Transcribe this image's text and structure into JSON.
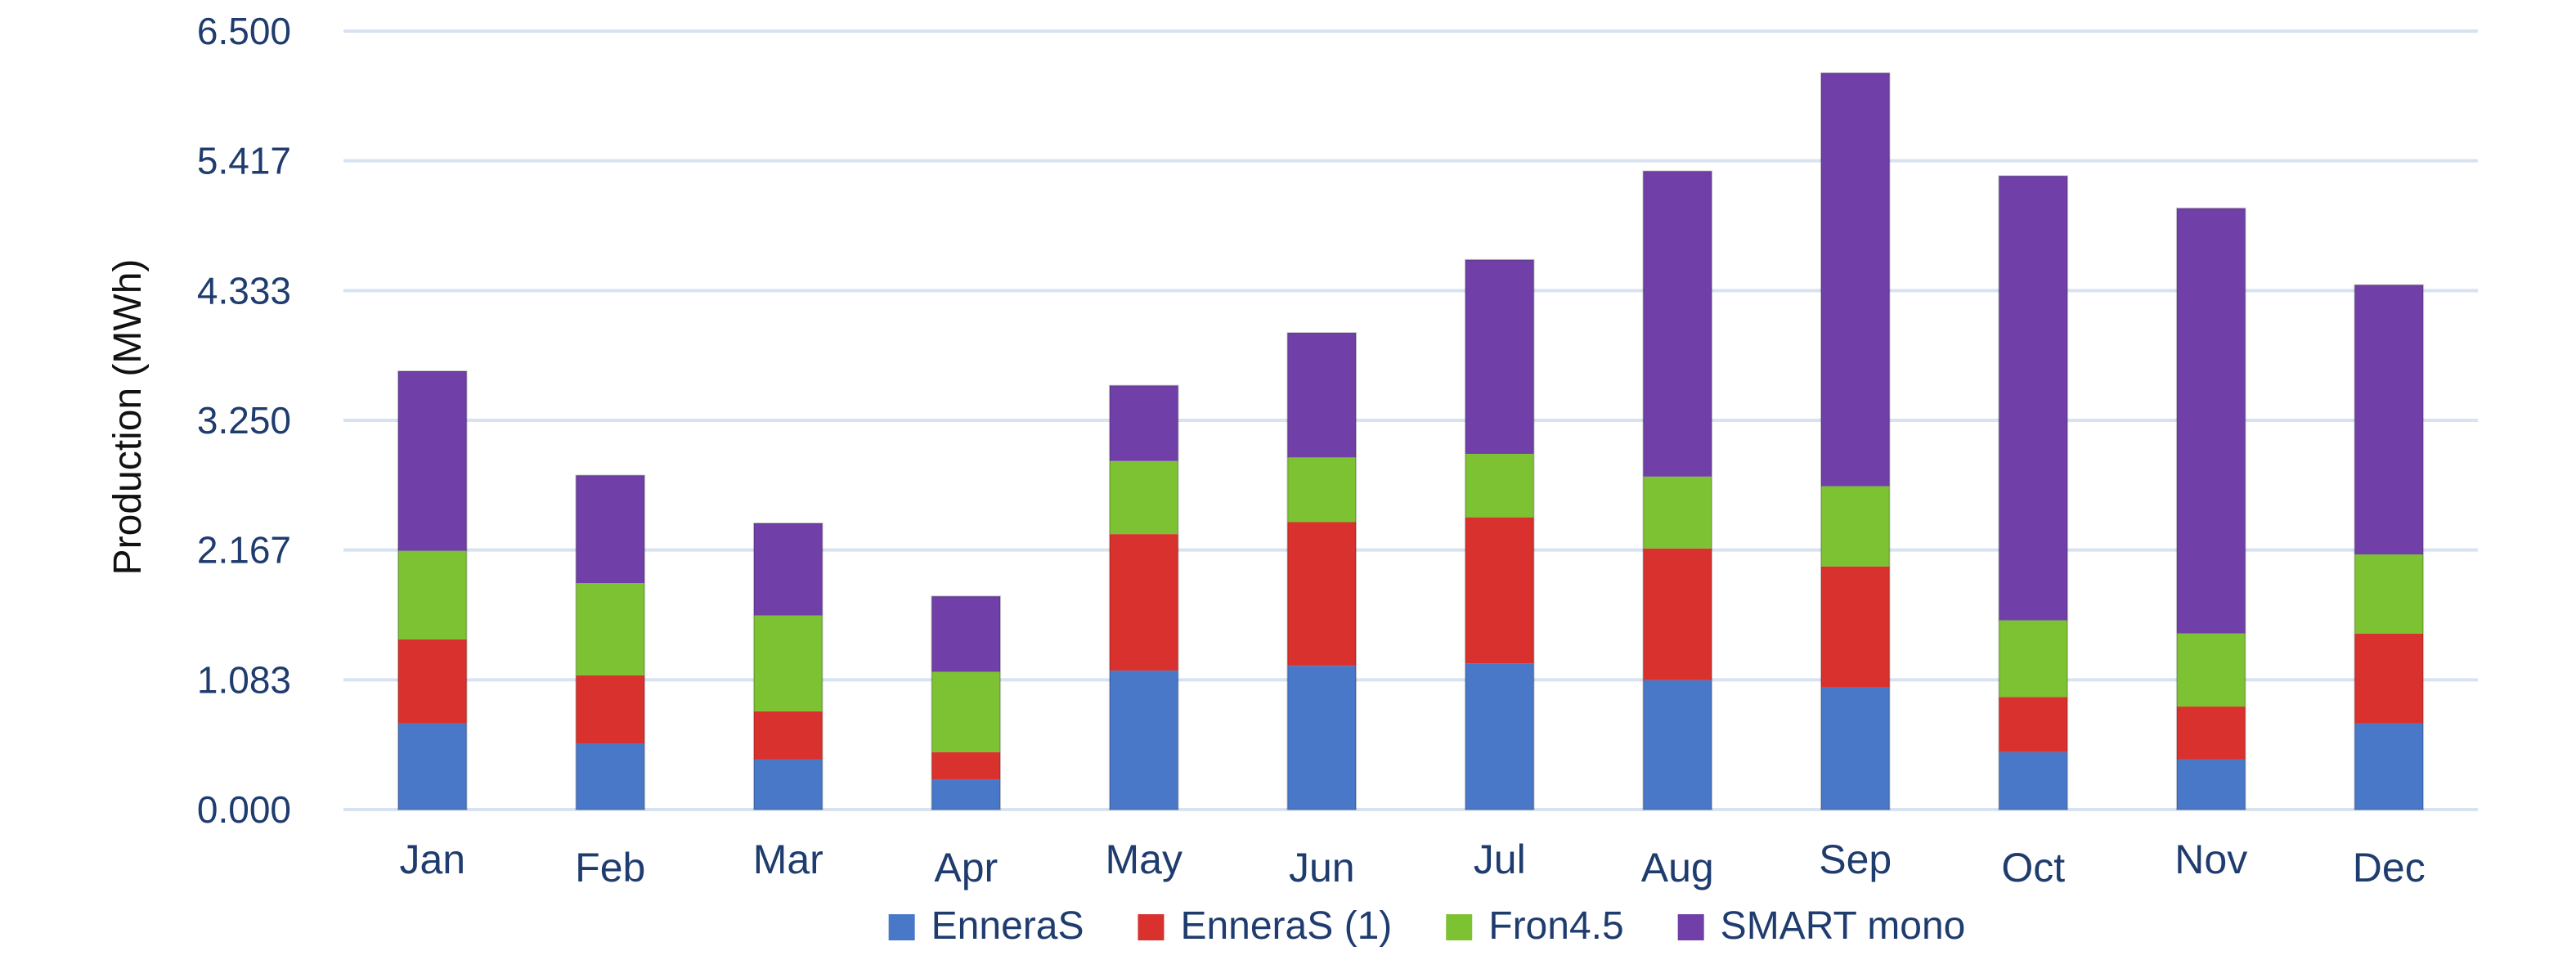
{
  "chart_data": {
    "type": "bar",
    "stacked": true,
    "categories": [
      "Jan",
      "Feb",
      "Mar",
      "Apr",
      "May",
      "Jun",
      "Jul",
      "Aug",
      "Sep",
      "Oct",
      "Nov",
      "Dec"
    ],
    "y_ticks": [
      "0.000",
      "1.083",
      "2.167",
      "3.250",
      "4.333",
      "5.417",
      "6.500"
    ],
    "ylim": [
      0,
      6.5
    ],
    "ylabel": "Production (MWh)",
    "xlabel": "",
    "grid": true,
    "legend_position": "bottom",
    "series": [
      {
        "name": "EnneraS",
        "color": "#4a78c8",
        "values": [
          0.72,
          0.55,
          0.42,
          0.25,
          1.16,
          1.2,
          1.22,
          1.08,
          1.02,
          0.48,
          0.42,
          0.72
        ]
      },
      {
        "name": "EnneraS (1)",
        "color": "#d9322e",
        "values": [
          0.7,
          0.57,
          0.4,
          0.23,
          1.14,
          1.2,
          1.22,
          1.1,
          1.01,
          0.46,
          0.44,
          0.75
        ]
      },
      {
        "name": "Fron4.5",
        "color": "#7dc232",
        "values": [
          0.74,
          0.77,
          0.8,
          0.67,
          0.61,
          0.54,
          0.53,
          0.6,
          0.67,
          0.64,
          0.61,
          0.66
        ]
      },
      {
        "name": "SMART mono",
        "color": "#7040a8",
        "values": [
          1.5,
          0.9,
          0.77,
          0.63,
          0.63,
          1.04,
          1.62,
          2.55,
          3.45,
          3.71,
          3.55,
          2.25
        ]
      }
    ]
  }
}
